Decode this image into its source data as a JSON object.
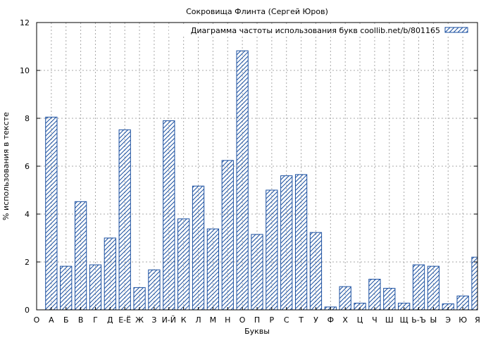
{
  "chart_data": {
    "type": "bar",
    "title": "Сокровища Флинта (Сергей Юров)",
    "xlabel": "Буквы",
    "ylabel": "% использования в тексте",
    "ylim": [
      0,
      12
    ],
    "yticks": [
      0,
      2,
      4,
      6,
      8,
      10,
      12
    ],
    "grid": true,
    "legend_position": "top-right",
    "categories": [
      "О",
      "А",
      "Б",
      "В",
      "Г",
      "Д",
      "Е-Ё",
      "Ж",
      "З",
      "И-Й",
      "К",
      "Л",
      "М",
      "Н",
      "О",
      "П",
      "Р",
      "С",
      "Т",
      "У",
      "Ф",
      "Х",
      "Ц",
      "Ч",
      "Ш",
      "Щ",
      "Ь-Ъ",
      "Ы",
      "Э",
      "Ю",
      "Я"
    ],
    "series": [
      {
        "name": "Диаграмма частоты использования букв coollib.net/b/801165",
        "color": "#1a4fa0",
        "values": [
          null,
          8.05,
          1.82,
          4.52,
          1.88,
          3.0,
          7.52,
          0.93,
          1.67,
          7.9,
          3.8,
          5.17,
          3.38,
          6.24,
          10.82,
          3.15,
          5.0,
          5.6,
          5.65,
          3.23,
          0.12,
          0.97,
          0.28,
          1.28,
          0.9,
          0.28,
          1.88,
          1.82,
          0.25,
          0.58,
          2.2
        ]
      }
    ]
  }
}
